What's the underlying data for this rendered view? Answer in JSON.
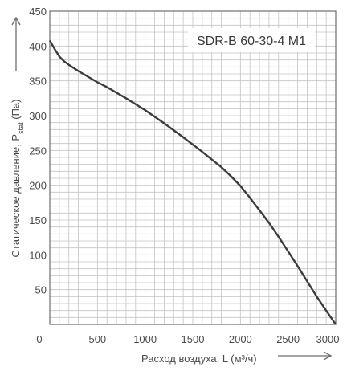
{
  "chart_data": {
    "type": "line",
    "title": "SDR-B 60-30-4 M1",
    "xlabel": "Расход воздуха, L (м³/ч)",
    "ylabel": "Статическое давление, P",
    "ylabel_sub": "stat",
    "ylabel_tail": " (Па)",
    "xlim": [
      0,
      3000
    ],
    "ylim": [
      0,
      450
    ],
    "x_ticks": [
      "0",
      "500",
      "1000",
      "1500",
      "2000",
      "2500",
      "3000"
    ],
    "y_ticks": [
      "50",
      "100",
      "150",
      "200",
      "250",
      "300",
      "350",
      "400",
      "450"
    ],
    "grid": true,
    "series": [
      {
        "x": [
          0,
          50,
          100,
          150,
          200,
          300,
          400,
          500,
          600,
          800,
          1000,
          1200,
          1400,
          1600,
          1800,
          1900,
          2000,
          2100,
          2200,
          2300,
          2400,
          2500,
          2600,
          2700,
          2800,
          2900,
          3000
        ],
        "values": [
          408,
          396,
          385,
          378,
          373,
          364,
          356,
          348,
          341,
          325,
          308,
          289,
          269,
          248,
          226,
          213,
          199,
          182,
          164,
          146,
          126,
          105,
          84,
          62,
          40,
          20,
          0
        ]
      }
    ],
    "colors": {
      "line": "#3c3c3c",
      "grid": "#c4c4c4",
      "axis": "#6e6e6e",
      "arrow": "#6e6e6e"
    }
  }
}
